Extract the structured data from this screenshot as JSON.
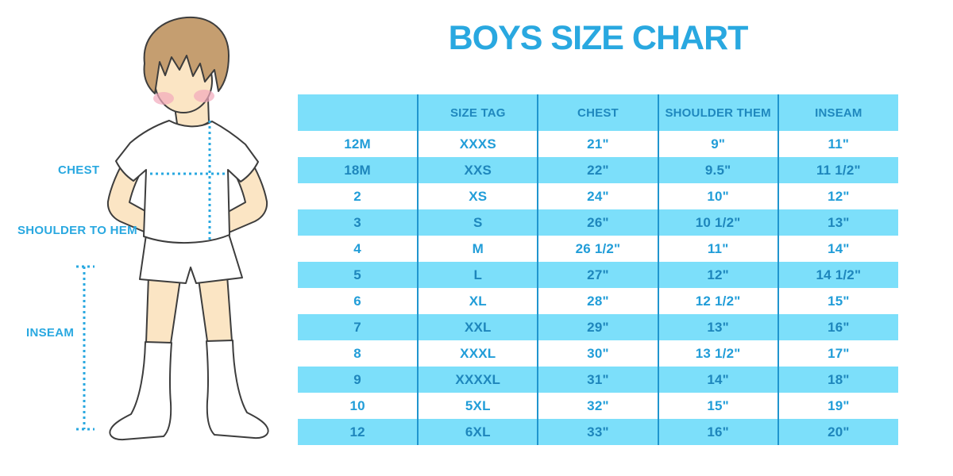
{
  "title": "BOYS SIZE CHART",
  "figure": {
    "labels": {
      "chest": "CHEST",
      "shoulder_to_hem": "SHOULDER TO HEM",
      "inseam": "INSEAM"
    }
  },
  "table": {
    "headers": [
      "",
      "SIZE TAG",
      "CHEST",
      "SHOULDER THEM",
      "INSEAM"
    ],
    "rows": [
      [
        "12M",
        "XXXS",
        "21\"",
        "9\"",
        "11\""
      ],
      [
        "18M",
        "XXS",
        "22\"",
        "9.5\"",
        "11 1/2\""
      ],
      [
        "2",
        "XS",
        "24\"",
        "10\"",
        "12\""
      ],
      [
        "3",
        "S",
        "26\"",
        "10 1/2\"",
        "13\""
      ],
      [
        "4",
        "M",
        "26 1/2\"",
        "11\"",
        "14\""
      ],
      [
        "5",
        "L",
        "27\"",
        "12\"",
        "14 1/2\""
      ],
      [
        "6",
        "XL",
        "28\"",
        "12 1/2\"",
        "15\""
      ],
      [
        "7",
        "XXL",
        "29\"",
        "13\"",
        "16\""
      ],
      [
        "8",
        "XXXL",
        "30\"",
        "13 1/2\"",
        "17\""
      ],
      [
        "9",
        "XXXXL",
        "31\"",
        "14\"",
        "18\""
      ],
      [
        "10",
        "5XL",
        "32\"",
        "15\"",
        "19\""
      ],
      [
        "12",
        "6XL",
        "33\"",
        "16\"",
        "20\""
      ]
    ]
  },
  "colors": {
    "accent": "#29a8e0",
    "light_blue": "#7cdffa",
    "divider": "#2095ce",
    "cell_text": "#219dd8",
    "cell_text_alt": "#1e86bc",
    "header_text": "#1f88be",
    "skin": "#fbe5c4",
    "hair": "#c59e70",
    "cheek": "#f2aabc",
    "outline": "#3d3d3d"
  }
}
